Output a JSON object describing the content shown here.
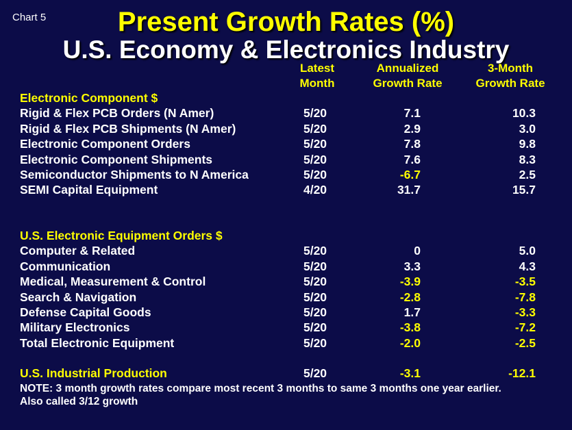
{
  "chart_label": "Chart 5",
  "title": "Present Growth Rates (%)",
  "subtitle": "U.S. Economy & Electronics Industry",
  "columns": [
    [
      "Latest",
      "Month"
    ],
    [
      "Annualized",
      "Growth Rate"
    ],
    [
      "3-Month",
      "Growth Rate"
    ]
  ],
  "sections": [
    {
      "heading": "Electronic Component $",
      "rows": [
        [
          "Rigid & Flex PCB Orders (N Amer)",
          "5/20",
          "7.1",
          "10.3"
        ],
        [
          "Rigid & Flex PCB Shipments (N Amer)",
          "5/20",
          "2.9",
          "3.0"
        ],
        [
          "Electronic Component Orders",
          "5/20",
          "7.8",
          "9.8"
        ],
        [
          "Electronic Component Shipments",
          "5/20",
          "7.6",
          "8.3"
        ],
        [
          "Semiconductor Shipments to N America",
          "5/20",
          "-6.7",
          "2.5"
        ],
        [
          "SEMI Capital Equipment",
          "4/20",
          "31.7",
          "15.7"
        ]
      ]
    },
    {
      "heading": "U.S. Electronic Equipment Orders $",
      "rows": [
        [
          "Computer & Related",
          "5/20",
          "0",
          "5.0"
        ],
        [
          "Communication",
          "5/20",
          "3.3",
          "4.3"
        ],
        [
          "Medical, Measurement & Control",
          "5/20",
          "-3.9",
          "-3.5"
        ],
        [
          "Search & Navigation",
          "5/20",
          "-2.8",
          "-7.8"
        ],
        [
          "Defense Capital Goods",
          "5/20",
          "1.7",
          "-3.3"
        ],
        [
          "Military Electronics",
          "5/20",
          "-3.8",
          "-7.2"
        ],
        [
          "Total Electronic Equipment",
          "5/20",
          "-2.0",
          "-2.5"
        ]
      ]
    }
  ],
  "summary": [
    "U.S. Industrial Production",
    "5/20",
    "-3.1",
    "-12.1"
  ],
  "note": [
    "NOTE: 3 month growth rates compare most recent 3 months to same 3 months one year earlier.",
    "Also called 3/12 growth"
  ]
}
